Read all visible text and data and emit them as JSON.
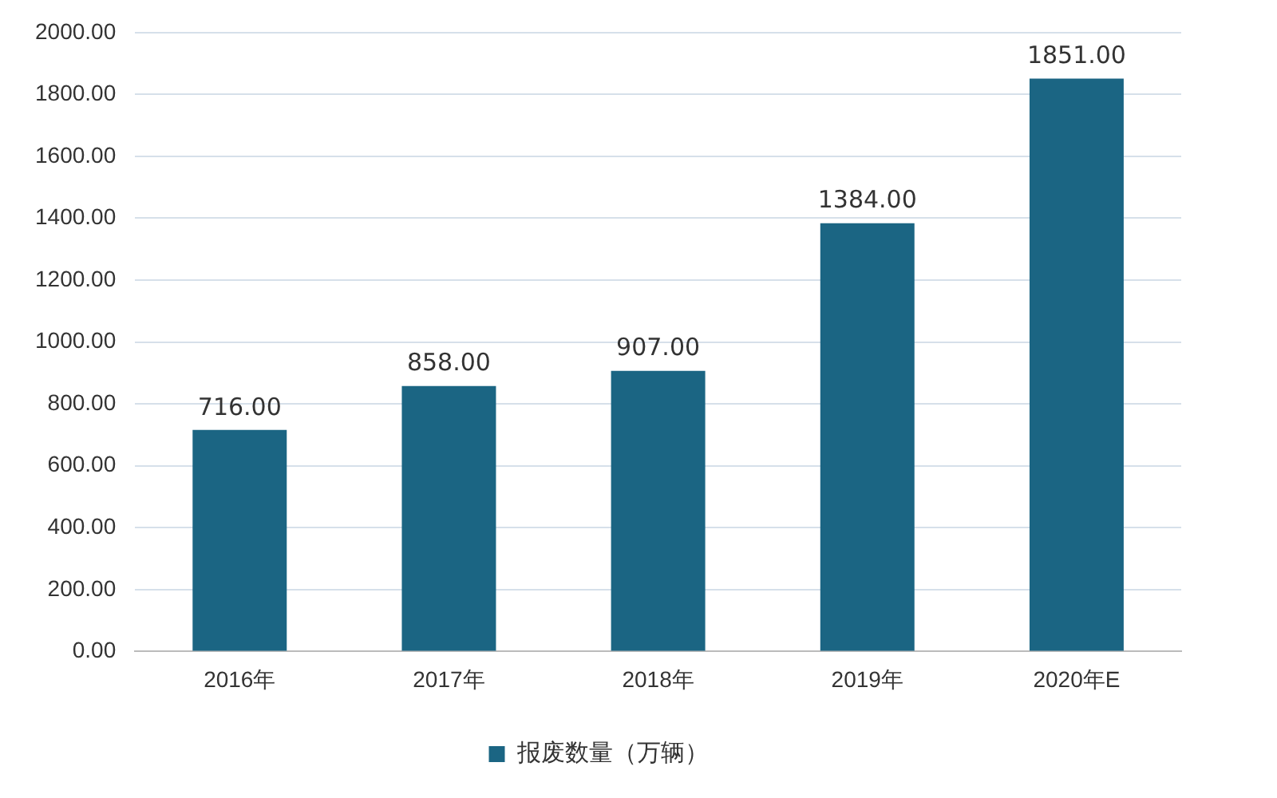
{
  "chart_data": {
    "type": "bar",
    "categories": [
      "2016年",
      "2017年",
      "2018年",
      "2019年",
      "2020年E"
    ],
    "series": [
      {
        "name": "报废数量（万辆）",
        "color": "#1b6583",
        "values": [
          716,
          858,
          907,
          1384,
          1851
        ]
      }
    ],
    "ylim": [
      0,
      2000
    ],
    "yticks": [
      {
        "value": 0,
        "label": "0.00"
      },
      {
        "value": 200,
        "label": "200.00"
      },
      {
        "value": 400,
        "label": "400.00"
      },
      {
        "value": 600,
        "label": "600.00"
      },
      {
        "value": 800,
        "label": "800.00"
      },
      {
        "value": 1000,
        "label": "1000.00"
      },
      {
        "value": 1200,
        "label": "1200.00"
      },
      {
        "value": 1400,
        "label": "1400.00"
      },
      {
        "value": 1600,
        "label": "1600.00"
      },
      {
        "value": 1800,
        "label": "1800.00"
      },
      {
        "value": 2000,
        "label": "2000.00"
      }
    ],
    "value_labels": [
      "716.00",
      "858.00",
      "907.00",
      "1384.00",
      "1851.00"
    ],
    "grid": "y",
    "legend": "bottom"
  }
}
